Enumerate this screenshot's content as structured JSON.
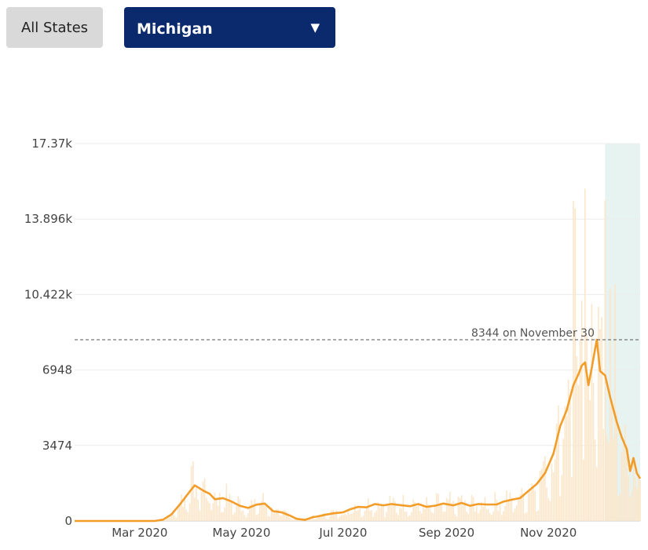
{
  "controls": {
    "all_states_label": "All States",
    "selected_state": "Michigan",
    "dropdown_caret": "▼"
  },
  "colors": {
    "line": "#f29d2a",
    "bars": "#fbe6c9",
    "projection_band": "#e6f3f1",
    "button_bg": "#d9d9d9",
    "select_bg": "#0b2a6e"
  },
  "chart_data": {
    "type": "line",
    "title": "",
    "xlabel": "",
    "ylabel": "",
    "ylim": [
      0,
      17370
    ],
    "y_ticks": [
      {
        "value": 0,
        "label": "0"
      },
      {
        "value": 3474,
        "label": "3474"
      },
      {
        "value": 6948,
        "label": "6948"
      },
      {
        "value": 10422,
        "label": "10.422k"
      },
      {
        "value": 13896,
        "label": "13.896k"
      },
      {
        "value": 17370,
        "label": "17.37k"
      }
    ],
    "xlim": [
      "2020-01-22",
      "2020-12-26"
    ],
    "x_ticks": [
      {
        "date": "2020-03-01",
        "label": "Mar 2020"
      },
      {
        "date": "2020-05-01",
        "label": "May 2020"
      },
      {
        "date": "2020-07-01",
        "label": "Jul 2020"
      },
      {
        "date": "2020-09-01",
        "label": "Sep 2020"
      },
      {
        "date": "2020-11-01",
        "label": "Nov 2020"
      }
    ],
    "grid": true,
    "annotation": {
      "value": 8344,
      "label": "8344 on November 30"
    },
    "shaded_region": {
      "start": "2020-12-05",
      "end": "2020-12-26"
    },
    "series": [
      {
        "x": [
          "2020-01-22",
          "2020-03-10",
          "2020-03-15",
          "2020-03-20",
          "2020-03-25",
          "2020-03-31",
          "2020-04-03",
          "2020-04-08",
          "2020-04-12",
          "2020-04-15",
          "2020-04-20",
          "2020-04-25",
          "2020-04-30",
          "2020-05-05",
          "2020-05-10",
          "2020-05-15",
          "2020-05-20",
          "2020-05-25",
          "2020-05-30",
          "2020-06-03",
          "2020-06-08",
          "2020-06-13",
          "2020-06-15",
          "2020-06-20",
          "2020-06-25",
          "2020-07-01",
          "2020-07-05",
          "2020-07-10",
          "2020-07-15",
          "2020-07-20",
          "2020-07-25",
          "2020-07-30",
          "2020-08-04",
          "2020-08-10",
          "2020-08-15",
          "2020-08-20",
          "2020-08-25",
          "2020-08-30",
          "2020-09-05",
          "2020-09-10",
          "2020-09-15",
          "2020-09-20",
          "2020-09-25",
          "2020-10-01",
          "2020-10-05",
          "2020-10-10",
          "2020-10-15",
          "2020-10-20",
          "2020-10-25",
          "2020-10-30",
          "2020-11-04",
          "2020-11-08",
          "2020-11-12",
          "2020-11-16",
          "2020-11-19",
          "2020-11-21",
          "2020-11-23",
          "2020-11-25",
          "2020-11-27",
          "2020-11-30",
          "2020-12-02",
          "2020-12-05",
          "2020-12-08",
          "2020-12-12",
          "2020-12-15",
          "2020-12-18",
          "2020-12-20",
          "2020-12-22",
          "2020-12-24",
          "2020-12-26"
        ],
        "y": [
          0,
          0,
          60,
          300,
          750,
          1350,
          1640,
          1400,
          1250,
          1000,
          1050,
          900,
          700,
          600,
          750,
          800,
          450,
          400,
          250,
          100,
          50,
          180,
          200,
          280,
          350,
          400,
          530,
          650,
          630,
          780,
          720,
          780,
          730,
          680,
          780,
          650,
          700,
          800,
          720,
          830,
          700,
          780,
          760,
          760,
          890,
          980,
          1050,
          1380,
          1700,
          2200,
          3100,
          4350,
          5100,
          6250,
          6750,
          7150,
          7300,
          6250,
          7050,
          8344,
          6900,
          6700,
          5700,
          4550,
          3850,
          3300,
          2300,
          2900,
          2200,
          1950
        ]
      }
    ]
  }
}
